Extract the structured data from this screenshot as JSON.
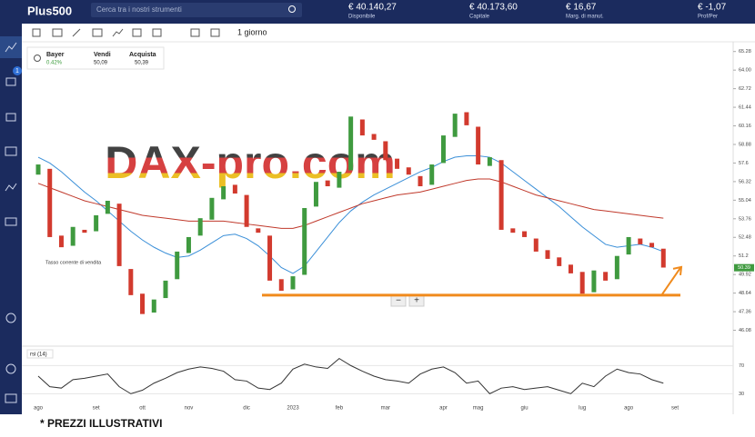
{
  "header": {
    "logo": "Plus500",
    "search": "Cerca tra i nostri strumenti",
    "stats": [
      {
        "value": "€ 40.140,27",
        "label": "Disponibile"
      },
      {
        "value": "€ 40.173,60",
        "label": "Capitale"
      },
      {
        "value": "€ 16,67",
        "label": "Marg. di manut."
      },
      {
        "value": "€ -1,07",
        "label": "Prof/Per"
      }
    ]
  },
  "sidebar": {
    "badge": "1"
  },
  "toolbar": {
    "timeframe": "1 giorno"
  },
  "instrument": {
    "name": "Bayer",
    "change": "0.42%",
    "sell_label": "Vendi",
    "sell": "50,09",
    "buy_label": "Acquista",
    "buy": "50,39"
  },
  "zoom": {
    "out": "−",
    "in": "+"
  },
  "chart_data": [
    {
      "type": "candlestick",
      "watermark": "DAX-pro.com",
      "annotation": "Tasso corrente di vendita",
      "categories": [
        "ago",
        null,
        null,
        null,
        null,
        "set",
        null,
        null,
        null,
        "ott",
        null,
        null,
        null,
        "nov",
        null,
        null,
        null,
        null,
        "dic",
        null,
        null,
        null,
        "2023",
        null,
        null,
        null,
        "feb",
        null,
        null,
        null,
        "mar",
        null,
        null,
        null,
        null,
        "apr",
        null,
        null,
        "mag",
        null,
        null,
        null,
        "giu",
        null,
        null,
        null,
        null,
        "lug",
        null,
        null,
        null,
        "ago",
        null,
        null,
        null,
        "set"
      ],
      "open": [
        56.8,
        57.2,
        52.6,
        51.9,
        53.0,
        52.9,
        54.1,
        54.8,
        50.3,
        48.6,
        47.3,
        48.3,
        49.6,
        51.4,
        52.6,
        53.7,
        55.1,
        56.1,
        55.4,
        53.1,
        52.6,
        49.6,
        48.9,
        49.9,
        54.6,
        56.4,
        55.9,
        57.1,
        60.6,
        59.6,
        59.1,
        57.9,
        57.3,
        56.7,
        56.1,
        57.6,
        59.4,
        61.1,
        60.1,
        57.4,
        57.8,
        53.1,
        52.9,
        52.4,
        51.6,
        51.1,
        50.6,
        50.1,
        48.7,
        50.1,
        49.6,
        51.3,
        52.4,
        52.1,
        51.7,
        null
      ],
      "close": [
        57.5,
        52.5,
        51.8,
        53.2,
        52.8,
        54.0,
        55.0,
        50.5,
        48.5,
        47.2,
        48.2,
        49.5,
        51.5,
        52.5,
        53.8,
        55.2,
        56.0,
        55.5,
        53.2,
        52.8,
        49.5,
        48.8,
        49.8,
        54.5,
        56.3,
        56.0,
        57.0,
        60.8,
        59.5,
        59.2,
        57.8,
        57.2,
        56.8,
        56.0,
        57.5,
        59.5,
        61.0,
        60.2,
        57.5,
        58.0,
        53.0,
        52.8,
        52.5,
        51.5,
        51.0,
        50.5,
        50.0,
        48.6,
        50.2,
        49.5,
        51.2,
        52.5,
        52.0,
        51.8,
        50.4,
        null
      ],
      "up_color": "#3f9a3f",
      "down_color": "#d23a2e",
      "series": [
        {
          "color": "#3a8fd8",
          "values": [
            58.0,
            57.6,
            57.0,
            56.3,
            55.6,
            55.0,
            54.3,
            53.6,
            52.9,
            52.3,
            51.8,
            51.4,
            51.1,
            51.2,
            51.6,
            52.1,
            52.6,
            52.7,
            52.4,
            51.9,
            51.2,
            50.4,
            50.0,
            50.5,
            51.5,
            52.5,
            53.5,
            54.3,
            54.9,
            55.4,
            55.8,
            56.2,
            56.6,
            57.0,
            57.3,
            57.7,
            58.0,
            58.1,
            58.1,
            58.0,
            57.6,
            57.0,
            56.4,
            55.8,
            55.2,
            54.6,
            53.9,
            53.2,
            52.6,
            52.0,
            51.8,
            51.9,
            52.0,
            51.8,
            51.5,
            null
          ]
        },
        {
          "color": "#c0392b",
          "values": [
            56.2,
            55.9,
            55.6,
            55.3,
            55.0,
            54.8,
            54.6,
            54.4,
            54.2,
            54.0,
            53.9,
            53.8,
            53.7,
            53.6,
            53.6,
            53.6,
            53.6,
            53.5,
            53.4,
            53.3,
            53.2,
            53.1,
            53.1,
            53.3,
            53.6,
            53.9,
            54.2,
            54.5,
            54.8,
            55.0,
            55.2,
            55.4,
            55.5,
            55.6,
            55.8,
            56.0,
            56.2,
            56.4,
            56.5,
            56.5,
            56.3,
            56.0,
            55.7,
            55.4,
            55.2,
            55.0,
            54.8,
            54.6,
            54.4,
            54.3,
            54.2,
            54.1,
            54.0,
            53.9,
            53.8,
            null
          ]
        }
      ],
      "current_price": 50.39,
      "support_level": 48.5,
      "support_color": "#f08a1c",
      "ylim": [
        45.3,
        65.7
      ],
      "yticks": [
        46.08,
        47.36,
        48.64,
        49.92,
        51.2,
        52.48,
        53.76,
        55.04,
        56.32,
        57.6,
        58.88,
        60.16,
        61.44,
        62.72,
        {
          "value": 64,
          "label": "64.00"
        },
        65.28
      ]
    },
    {
      "type": "line",
      "title": "rsi (14)",
      "color": "#333333",
      "values": [
        55,
        40,
        38,
        50,
        52,
        55,
        58,
        40,
        30,
        35,
        45,
        52,
        60,
        65,
        68,
        66,
        62,
        50,
        48,
        38,
        36,
        45,
        65,
        72,
        68,
        66,
        80,
        70,
        62,
        55,
        50,
        48,
        45,
        58,
        65,
        68,
        60,
        45,
        48,
        30,
        38,
        40,
        36,
        38,
        40,
        35,
        30,
        45,
        40,
        55,
        65,
        60,
        58,
        50,
        45,
        null
      ],
      "ylim": [
        15,
        95
      ],
      "yticks": [
        30,
        70
      ]
    }
  ],
  "footer": "* PREZZI ILLUSTRATIVI"
}
